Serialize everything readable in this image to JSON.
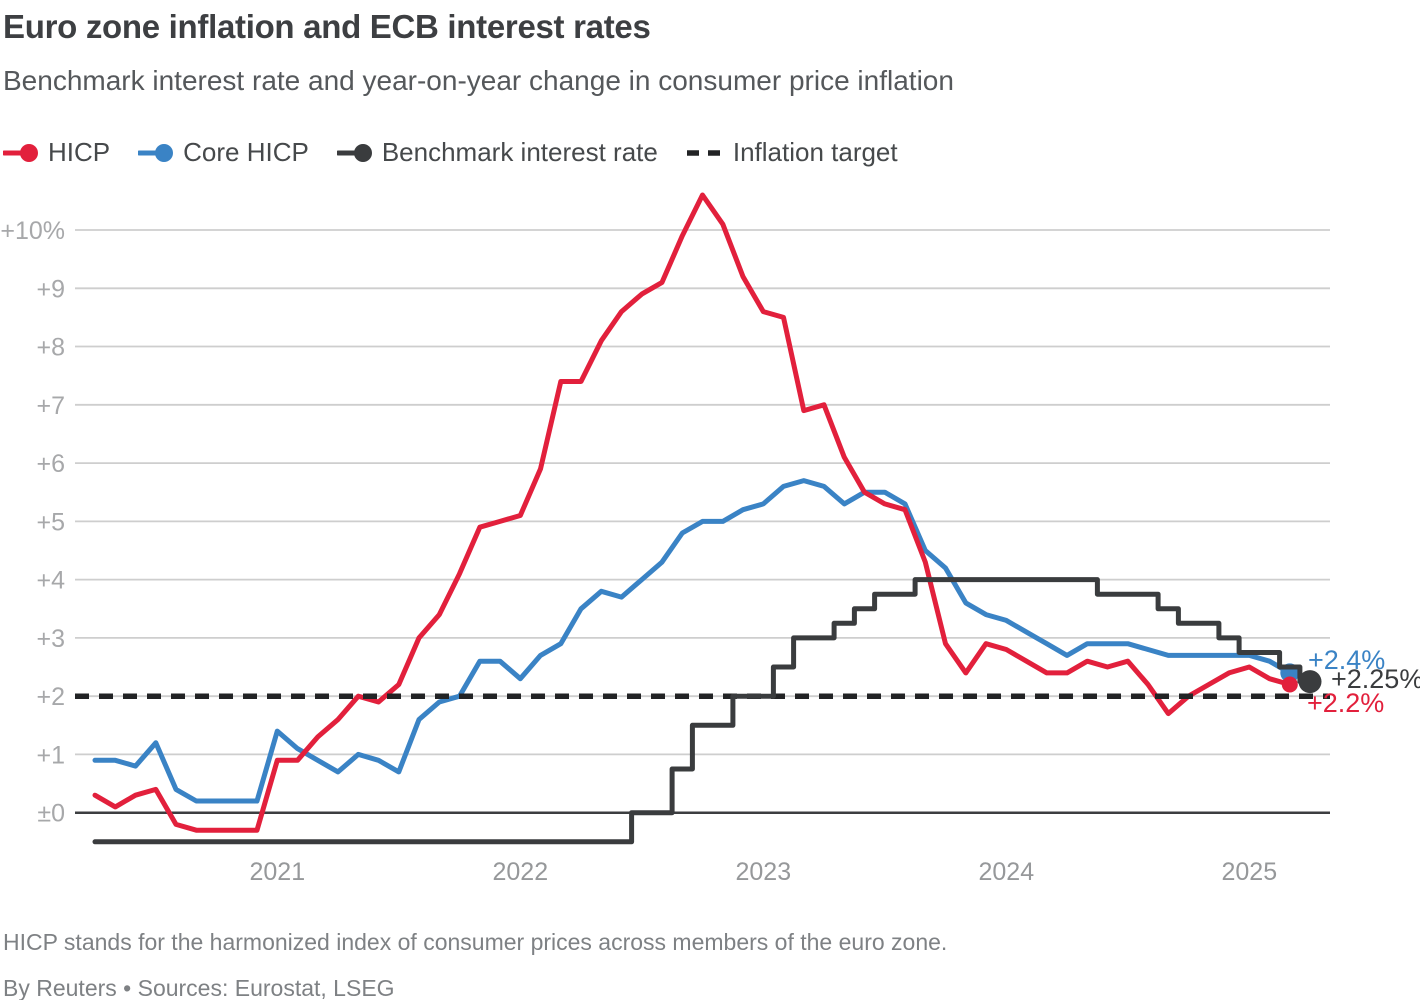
{
  "header": {
    "title": "Euro zone inflation and ECB interest rates",
    "subtitle": "Benchmark interest rate and year-on-year change in consumer price inflation"
  },
  "legend": [
    {
      "label": "HICP",
      "series": "hicp"
    },
    {
      "label": "Core HICP",
      "series": "core_hicp"
    },
    {
      "label": "Benchmark interest rate",
      "series": "benchmark"
    },
    {
      "label": "Inflation target",
      "series": "target"
    }
  ],
  "colors": {
    "hicp": "#e2203c",
    "core_hicp": "#3a83c5",
    "benchmark": "#3a3c3e",
    "target": "#222325",
    "grid": "#cecece",
    "zero_line": "#3c3e40"
  },
  "chart_data": {
    "type": "line",
    "title": "Euro zone inflation and ECB interest rates",
    "x_start": "2020-04",
    "x_end_inflation": "2025-03",
    "x_end_rate": "2025-04",
    "frequency": "monthly",
    "ylim": [
      -0.6,
      10.75
    ],
    "grid": true,
    "target_value": 2,
    "yticks": [
      {
        "label": "+10%",
        "v": 10
      },
      {
        "label": "+9",
        "v": 9
      },
      {
        "label": "+8",
        "v": 8
      },
      {
        "label": "+7",
        "v": 7
      },
      {
        "label": "+6",
        "v": 6
      },
      {
        "label": "+5",
        "v": 5
      },
      {
        "label": "+4",
        "v": 4
      },
      {
        "label": "+3",
        "v": 3
      },
      {
        "label": "+2",
        "v": 2
      },
      {
        "label": "+1",
        "v": 1
      },
      {
        "label": "±0",
        "v": 0
      }
    ],
    "xticks": [
      {
        "label": "2021",
        "m": 9
      },
      {
        "label": "2022",
        "m": 21
      },
      {
        "label": "2023",
        "m": 33
      },
      {
        "label": "2024",
        "m": 45
      },
      {
        "label": "2025",
        "m": 57
      }
    ],
    "series": [
      {
        "name": "Core HICP",
        "type": "line",
        "color_key": "core_hicp",
        "values": [
          0.9,
          0.9,
          0.8,
          1.2,
          0.4,
          0.2,
          0.2,
          0.2,
          0.2,
          1.4,
          1.1,
          0.9,
          0.7,
          1.0,
          0.9,
          0.7,
          1.6,
          1.9,
          2.0,
          2.6,
          2.6,
          2.3,
          2.7,
          2.9,
          3.5,
          3.8,
          3.7,
          4.0,
          4.3,
          4.8,
          5.0,
          5.0,
          5.2,
          5.3,
          5.6,
          5.7,
          5.6,
          5.3,
          5.5,
          5.5,
          5.3,
          4.5,
          4.2,
          3.6,
          3.4,
          3.3,
          3.1,
          2.9,
          2.7,
          2.9,
          2.9,
          2.9,
          2.8,
          2.7,
          2.7,
          2.7,
          2.7,
          2.7,
          2.6,
          2.4
        ]
      },
      {
        "name": "HICP",
        "type": "line",
        "color_key": "hicp",
        "values": [
          0.3,
          0.1,
          0.3,
          0.4,
          -0.2,
          -0.3,
          -0.3,
          -0.3,
          -0.3,
          0.9,
          0.9,
          1.3,
          1.6,
          2.0,
          1.9,
          2.2,
          3.0,
          3.4,
          4.1,
          4.9,
          5.0,
          5.1,
          5.9,
          7.4,
          7.4,
          8.1,
          8.6,
          8.9,
          9.1,
          9.9,
          10.6,
          10.1,
          9.2,
          8.6,
          8.5,
          6.9,
          7.0,
          6.1,
          5.5,
          5.3,
          5.2,
          4.3,
          2.9,
          2.4,
          2.9,
          2.8,
          2.6,
          2.4,
          2.4,
          2.6,
          2.5,
          2.6,
          2.2,
          1.7,
          2.0,
          2.2,
          2.4,
          2.5,
          2.3,
          2.2
        ]
      },
      {
        "name": "Benchmark interest rate",
        "type": "step",
        "color_key": "benchmark",
        "values": [
          -0.5,
          -0.5,
          -0.5,
          -0.5,
          -0.5,
          -0.5,
          -0.5,
          -0.5,
          -0.5,
          -0.5,
          -0.5,
          -0.5,
          -0.5,
          -0.5,
          -0.5,
          -0.5,
          -0.5,
          -0.5,
          -0.5,
          -0.5,
          -0.5,
          -0.5,
          -0.5,
          -0.5,
          -0.5,
          -0.5,
          -0.5,
          0.0,
          0.0,
          0.75,
          1.5,
          1.5,
          2.0,
          2.0,
          2.5,
          3.0,
          3.0,
          3.25,
          3.5,
          3.75,
          3.75,
          4.0,
          4.0,
          4.0,
          4.0,
          4.0,
          4.0,
          4.0,
          4.0,
          4.0,
          3.75,
          3.75,
          3.75,
          3.5,
          3.25,
          3.25,
          3.0,
          2.75,
          2.75,
          2.5,
          2.25
        ]
      }
    ],
    "end_labels": [
      {
        "label": "+2.4%",
        "value": 2.4,
        "series": "Core HICP"
      },
      {
        "label": "+2.25%",
        "value": 2.25,
        "series": "Benchmark interest rate"
      },
      {
        "label": "+2.2%",
        "value": 2.2,
        "series": "HICP"
      }
    ]
  },
  "footer": {
    "note": "HICP stands for the harmonized index of consumer prices across members of the euro zone.",
    "byline": "By Reuters • Sources: Eurostat, LSEG"
  }
}
